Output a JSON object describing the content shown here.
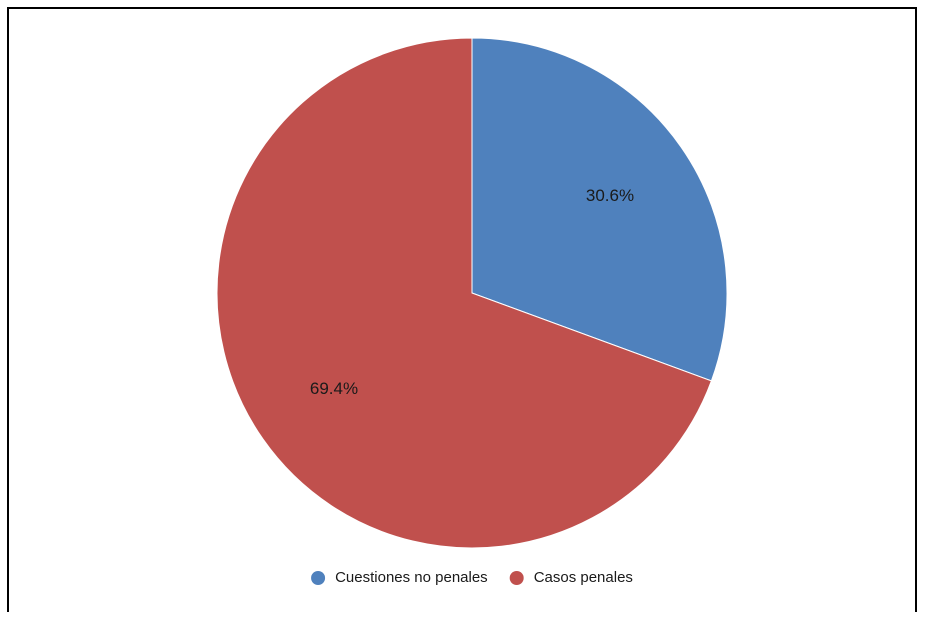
{
  "chart_data": {
    "type": "pie",
    "slices": [
      {
        "name": "Cuestiones no penales",
        "value": 30.6,
        "label": "30.6%",
        "color": "#4f81bd"
      },
      {
        "name": "Casos penales",
        "value": 69.4,
        "label": "69.4%",
        "color": "#c0504d"
      }
    ],
    "legend": {
      "placement": "bottom",
      "entries": [
        "Cuestiones no penales",
        "Casos penales"
      ]
    },
    "start_angle": "12 o'clock",
    "direction": "clockwise"
  }
}
